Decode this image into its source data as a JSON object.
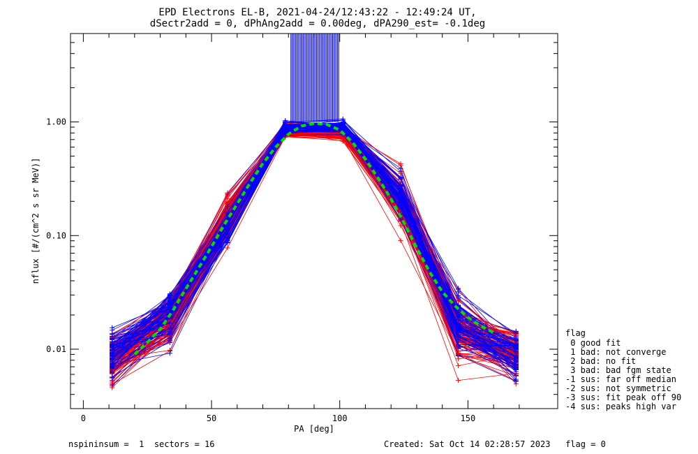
{
  "chart_data": {
    "type": "line",
    "title_line1": "EPD Electrons EL-B, 2021-04-24/12:43:22 - 12:49:24 UT,",
    "title_line2": "dSectr2add = 0, dPhAng2add = 0.00deg, dPA290_est=  -0.1deg",
    "xlabel": "PA [deg]",
    "ylabel": "nflux [#/(cm^2 s sr MeV)]",
    "xlim": [
      -5,
      185
    ],
    "ylim": [
      0.003,
      6.0
    ],
    "yscale": "log",
    "x_ticks": [
      0,
      50,
      100,
      150
    ],
    "x_tick_labels": [
      "0",
      "50",
      "100",
      "150"
    ],
    "y_ticks": [
      0.01,
      0.1,
      1.0
    ],
    "y_tick_labels": [
      "0.01",
      "0.10",
      "1.00"
    ],
    "pa_bins": [
      11.25,
      33.75,
      56.25,
      78.75,
      101.25,
      123.75,
      146.25,
      168.75
    ],
    "series": [
      {
        "color": "#ff0000",
        "representative_values": [
          0.0075,
          0.018,
          0.14,
          0.82,
          0.8,
          0.2,
          0.014,
          0.0085
        ]
      },
      {
        "color": "#0000ff",
        "representative_values": [
          0.0085,
          0.02,
          0.13,
          0.88,
          0.9,
          0.22,
          0.016,
          0.009
        ]
      },
      {
        "name": "fit",
        "color": "#00dd00",
        "style": "dashed",
        "x": [
          20,
          25,
          30,
          35,
          40,
          45,
          50,
          55,
          60,
          65,
          70,
          75,
          80,
          85,
          90,
          95,
          100,
          105,
          110,
          115,
          120,
          125,
          130,
          135,
          140,
          145,
          150,
          155,
          160
        ],
        "values": [
          0.009,
          0.0115,
          0.015,
          0.022,
          0.034,
          0.052,
          0.08,
          0.125,
          0.19,
          0.29,
          0.43,
          0.6,
          0.78,
          0.92,
          0.97,
          0.95,
          0.85,
          0.66,
          0.47,
          0.32,
          0.21,
          0.13,
          0.078,
          0.048,
          0.032,
          0.024,
          0.019,
          0.016,
          0.014
        ]
      }
    ],
    "grid": false,
    "legend_position": "right"
  },
  "legend": {
    "header": "flag",
    "items": [
      " 0 good fit",
      " 1 bad: not converge",
      " 2 bad: no fit",
      " 3 bad: bad fgm state",
      "-1 sus: far off median",
      "-2 sus: not symmetric",
      "-3 sus: fit peak off 90",
      "-4 sus: peaks high var"
    ]
  },
  "footer": {
    "left": "nspininsum =  1  sectors = 16",
    "right": "Created: Sat Oct 14 02:28:57 2023   flag = 0"
  },
  "colors": {
    "red": "#ff0000",
    "blue": "#0000ff",
    "fit": "#00dd00",
    "axes": "#000000"
  }
}
